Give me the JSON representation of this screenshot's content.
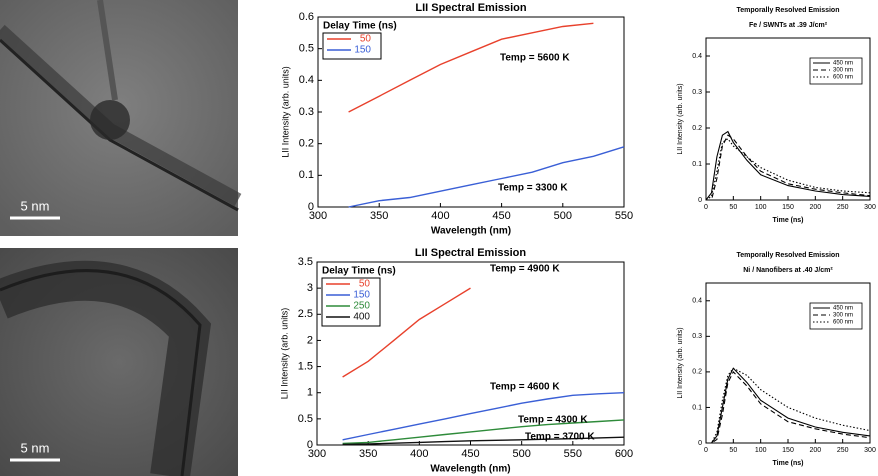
{
  "images": [
    {
      "scale_label": "5 nm"
    },
    {
      "scale_label": "5 nm"
    }
  ],
  "chart_data": [
    {
      "type": "line",
      "title": "LII Spectral Emission",
      "x_label": "Wavelength (nm)",
      "y_label": "LII Intensity (arb. units)",
      "legend": "upper left",
      "legend_title": "Delay Time (ns)",
      "x": [
        325,
        350,
        375,
        400,
        425,
        450,
        475,
        500,
        525,
        550
      ],
      "series": [
        {
          "name": "50",
          "color": "#e8412c",
          "dash": "solid",
          "values": [
            0.3,
            0.35,
            0.4,
            0.45,
            0.49,
            0.53,
            0.55,
            0.57,
            0.58,
            null
          ]
        },
        {
          "name": "150",
          "color": "#3a5fd6",
          "dash": "solid",
          "values": [
            0.0,
            0.02,
            0.03,
            0.05,
            0.07,
            0.09,
            0.11,
            0.14,
            0.16,
            0.19
          ]
        }
      ],
      "xlim": [
        300,
        550
      ],
      "ylim": [
        0,
        0.6
      ],
      "xticks": [
        300,
        350,
        400,
        450,
        500,
        550
      ],
      "yticks": [
        0,
        0.1,
        0.2,
        0.3,
        0.4,
        0.5,
        0.6
      ],
      "annotations": [
        "Temp = 5600 K",
        "Temp = 3300 K"
      ]
    },
    {
      "type": "line",
      "title": "LII Spectral Emission",
      "x_label": "Wavelength (nm)",
      "y_label": "LII Intensity (arb. units)",
      "legend": "upper left",
      "legend_title": "Delay Time (ns)",
      "x": [
        325,
        350,
        375,
        400,
        425,
        450,
        475,
        500,
        525,
        550,
        575,
        600
      ],
      "series": [
        {
          "name": "50",
          "color": "#e8412c",
          "dash": "solid",
          "values": [
            1.3,
            1.6,
            2.0,
            2.4,
            2.7,
            3.0,
            null,
            null,
            null,
            null,
            null,
            null
          ]
        },
        {
          "name": "150",
          "color": "#3a5fd6",
          "dash": "solid",
          "values": [
            0.1,
            0.2,
            0.3,
            0.4,
            0.5,
            0.6,
            0.7,
            0.8,
            0.88,
            0.95,
            0.98,
            1.0
          ]
        },
        {
          "name": "250",
          "color": "#2e8b3a",
          "dash": "solid",
          "values": [
            0.03,
            0.05,
            0.1,
            0.15,
            0.2,
            0.25,
            0.3,
            0.35,
            0.39,
            0.42,
            0.45,
            0.48
          ]
        },
        {
          "name": "400",
          "color": "#111111",
          "dash": "solid",
          "values": [
            0.01,
            0.02,
            0.035,
            0.05,
            0.065,
            0.08,
            0.09,
            0.1,
            0.11,
            0.12,
            0.135,
            0.15
          ]
        }
      ],
      "xlim": [
        300,
        600
      ],
      "ylim": [
        0,
        3.5
      ],
      "xticks": [
        300,
        350,
        400,
        450,
        500,
        550,
        600
      ],
      "yticks": [
        0,
        0.5,
        1,
        1.5,
        2,
        2.5,
        3,
        3.5
      ],
      "annotations": [
        "Temp = 4900 K",
        "Temp = 4600 K",
        "Temp = 4300 K",
        "Temp = 3700 K"
      ]
    },
    {
      "type": "line",
      "title": "Temporally Resolved Emission",
      "subtitle": "Fe / SWNTs at .39 J/cm²",
      "x_label": "Time (ns)",
      "y_label": "LII Intensity (arb. units)",
      "legend": "upper right",
      "x": [
        0,
        10,
        20,
        30,
        40,
        50,
        75,
        100,
        150,
        200,
        250,
        300
      ],
      "series": [
        {
          "name": "450 nm",
          "color": "#000000",
          "dash": "solid",
          "values": [
            0,
            0.02,
            0.12,
            0.18,
            0.19,
            0.16,
            0.11,
            0.07,
            0.04,
            0.025,
            0.015,
            0.01
          ]
        },
        {
          "name": "300 nm",
          "color": "#000000",
          "dash": "dashed",
          "values": [
            0,
            0.0,
            0.06,
            0.15,
            0.18,
            0.17,
            0.12,
            0.08,
            0.045,
            0.03,
            0.02,
            0.012
          ]
        },
        {
          "name": "600 nm",
          "color": "#000000",
          "dash": "dotted",
          "values": [
            0,
            0.01,
            0.08,
            0.16,
            0.17,
            0.15,
            0.12,
            0.09,
            0.055,
            0.035,
            0.025,
            0.02
          ]
        }
      ],
      "xlim": [
        0,
        300
      ],
      "ylim": [
        0,
        0.45
      ],
      "xticks": [
        0,
        50,
        100,
        150,
        200,
        250,
        300
      ],
      "yticks": [
        0,
        0.1,
        0.2,
        0.3,
        0.4
      ]
    },
    {
      "type": "line",
      "title": "Temporally Resolved Emission",
      "subtitle": "Ni / Nanofibers at .40 J/cm²",
      "x_label": "Time (ns)",
      "y_label": "LII Intensity (arb. units)",
      "legend": "upper right",
      "x": [
        0,
        10,
        20,
        30,
        40,
        50,
        75,
        100,
        150,
        200,
        250,
        300
      ],
      "series": [
        {
          "name": "450 nm",
          "color": "#000000",
          "dash": "solid",
          "values": [
            0,
            0,
            0.02,
            0.1,
            0.18,
            0.21,
            0.17,
            0.12,
            0.07,
            0.045,
            0.03,
            0.02
          ]
        },
        {
          "name": "300 nm",
          "color": "#000000",
          "dash": "dashed",
          "values": [
            0,
            0,
            0.01,
            0.08,
            0.17,
            0.2,
            0.16,
            0.11,
            0.06,
            0.04,
            0.025,
            0.015
          ]
        },
        {
          "name": "600 nm",
          "color": "#000000",
          "dash": "dotted",
          "values": [
            0,
            0,
            0.03,
            0.12,
            0.19,
            0.21,
            0.19,
            0.15,
            0.1,
            0.07,
            0.05,
            0.035
          ]
        }
      ],
      "xlim": [
        0,
        300
      ],
      "ylim": [
        0,
        0.45
      ],
      "xticks": [
        0,
        50,
        100,
        150,
        200,
        250,
        300
      ],
      "yticks": [
        0,
        0.1,
        0.2,
        0.3,
        0.4
      ]
    }
  ]
}
